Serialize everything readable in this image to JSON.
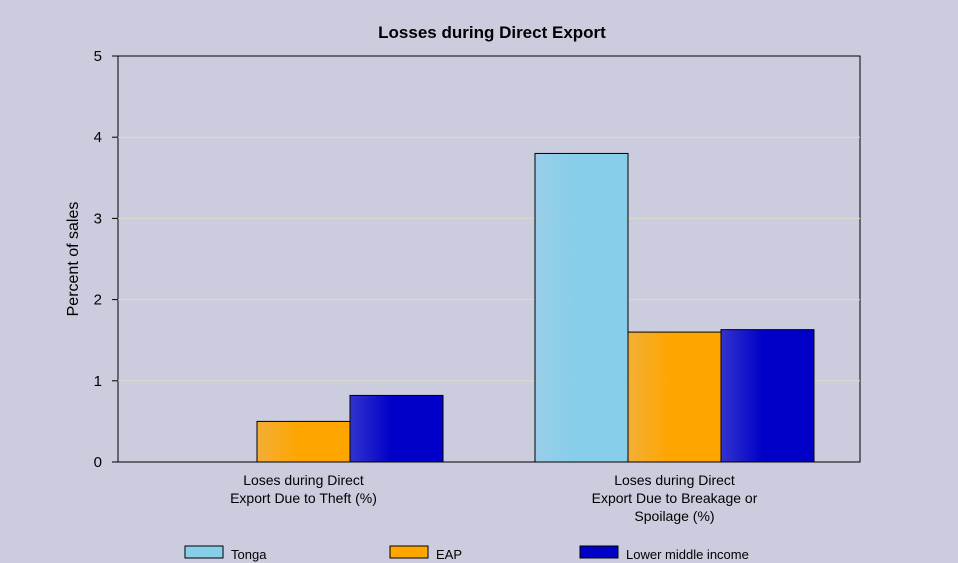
{
  "chart_data": {
    "type": "bar",
    "title": "Losses during Direct Export",
    "ylabel": "Percent of sales",
    "xlabel": "",
    "ylim": [
      0,
      5
    ],
    "yticks": [
      0,
      1,
      2,
      3,
      4,
      5
    ],
    "categories": [
      [
        "Loses during Direct",
        "Export Due to Theft (%)"
      ],
      [
        "Loses during Direct",
        "Export Due to Breakage or",
        "Spoilage (%)"
      ]
    ],
    "series": [
      {
        "name": "Tonga",
        "color": "#87ceeb",
        "values": [
          0,
          3.8
        ]
      },
      {
        "name": "EAP",
        "color": "#ffa500",
        "values": [
          0.5,
          1.6
        ]
      },
      {
        "name": "Lower middle income",
        "color": "#0000c8",
        "values": [
          0.82,
          1.63
        ]
      }
    ],
    "grid": true,
    "legend_position": "bottom",
    "colors": {
      "background": "#ccccdf",
      "plot_background": "#ccccdf",
      "gridline": "#dcdcc8",
      "axis": "#000000",
      "bar_outline": "#000000"
    }
  }
}
